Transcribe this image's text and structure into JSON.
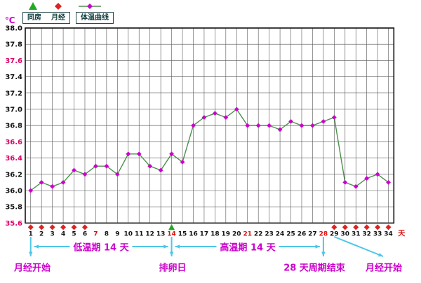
{
  "legend": {
    "items": [
      {
        "label": "同房",
        "symbol": "triangle",
        "color": "#22aa22"
      },
      {
        "label": "月经",
        "symbol": "diamond",
        "color": "#dd2222"
      },
      {
        "label": "体温曲线",
        "symbol": "dot-line",
        "color": "#cc00cc"
      }
    ]
  },
  "axis": {
    "y_ticks": [
      "38.0",
      "37.8",
      "37.6",
      "37.4",
      "37.2",
      "37.0",
      "36.8",
      "36.6",
      "36.4",
      "36.2",
      "36.0",
      "35.8",
      "35.6"
    ],
    "y_highlight": [
      "37.6",
      "36.6",
      "36.4",
      "35.6"
    ],
    "y_highlight_color": "#dd0066",
    "x_highlight": [
      7,
      14,
      21,
      28
    ],
    "x_highlight_color": "#dd1111",
    "tick_color": "#111111"
  },
  "chart_data": {
    "type": "line",
    "xlabel": "天",
    "ylabel": "℃",
    "ylim": [
      35.6,
      38.0
    ],
    "y_step": 0.2,
    "x": [
      1,
      2,
      3,
      4,
      5,
      6,
      7,
      8,
      9,
      10,
      11,
      12,
      13,
      14,
      15,
      16,
      17,
      18,
      19,
      20,
      21,
      22,
      23,
      24,
      25,
      26,
      27,
      28,
      29,
      30,
      31,
      32,
      33,
      34
    ],
    "series": [
      {
        "name": "体温曲线",
        "point_color": "#cc00cc",
        "line_color": "#4e8f4e",
        "values": [
          36.0,
          36.1,
          36.05,
          36.1,
          36.25,
          36.2,
          36.3,
          36.3,
          36.2,
          36.45,
          36.45,
          36.3,
          36.25,
          36.45,
          36.35,
          36.8,
          36.9,
          36.95,
          36.9,
          37.0,
          36.8,
          36.8,
          36.8,
          36.75,
          36.85,
          36.8,
          36.8,
          36.85,
          36.9,
          36.1,
          36.05,
          36.15,
          36.2,
          36.1
        ]
      }
    ],
    "markers": {
      "menses_days": [
        1,
        2,
        3,
        4,
        5,
        6,
        29,
        30,
        31,
        32,
        33,
        34
      ],
      "menses_color": "#dd2222",
      "ovulation_day": 14,
      "ovulation_color": "#22aa22"
    },
    "grid": true,
    "legend_position": "top-left"
  },
  "annotations": {
    "menses_start_left": "月经开始",
    "low_phase": "低温期 14 天",
    "ovulation": "排卵日",
    "high_phase": "高温期 14 天",
    "cycle_end": "28 天周期结束",
    "menses_start_right": "月经开始",
    "arrow_color": "#4fc6e8",
    "text_color": "#cc00cc"
  }
}
